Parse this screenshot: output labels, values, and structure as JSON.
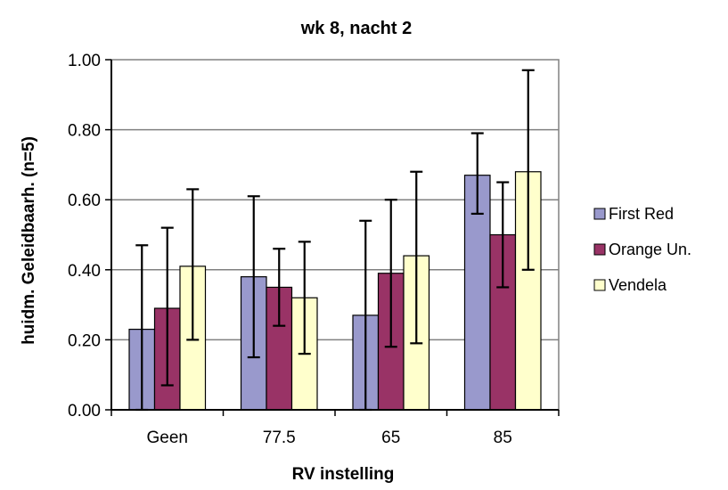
{
  "chart_data": {
    "type": "bar",
    "title": "wk 8, nacht 2",
    "xlabel": "RV instelling",
    "ylabel": "huidm. Geleidbaarh. (n=5)",
    "categories": [
      "Geen",
      "77.5",
      "65",
      "85"
    ],
    "ylim": [
      0,
      1
    ],
    "yticks": [
      "0.00",
      "0.20",
      "0.40",
      "0.60",
      "0.80",
      "1.00"
    ],
    "grid": true,
    "legend_position": "right",
    "series": [
      {
        "name": "First Red",
        "color": "#9999cc",
        "values": [
          0.23,
          0.38,
          0.27,
          0.67
        ],
        "err_low": [
          0.0,
          0.15,
          0.0,
          0.56
        ],
        "err_high": [
          0.47,
          0.61,
          0.54,
          0.79
        ]
      },
      {
        "name": "Orange Un.",
        "color": "#993366",
        "values": [
          0.29,
          0.35,
          0.39,
          0.5
        ],
        "err_low": [
          0.07,
          0.24,
          0.18,
          0.35
        ],
        "err_high": [
          0.52,
          0.46,
          0.6,
          0.65
        ]
      },
      {
        "name": "Vendela",
        "color": "#ffffcc",
        "values": [
          0.41,
          0.32,
          0.44,
          0.68
        ],
        "err_low": [
          0.2,
          0.16,
          0.19,
          0.4
        ],
        "err_high": [
          0.63,
          0.48,
          0.68,
          0.97
        ]
      }
    ]
  }
}
